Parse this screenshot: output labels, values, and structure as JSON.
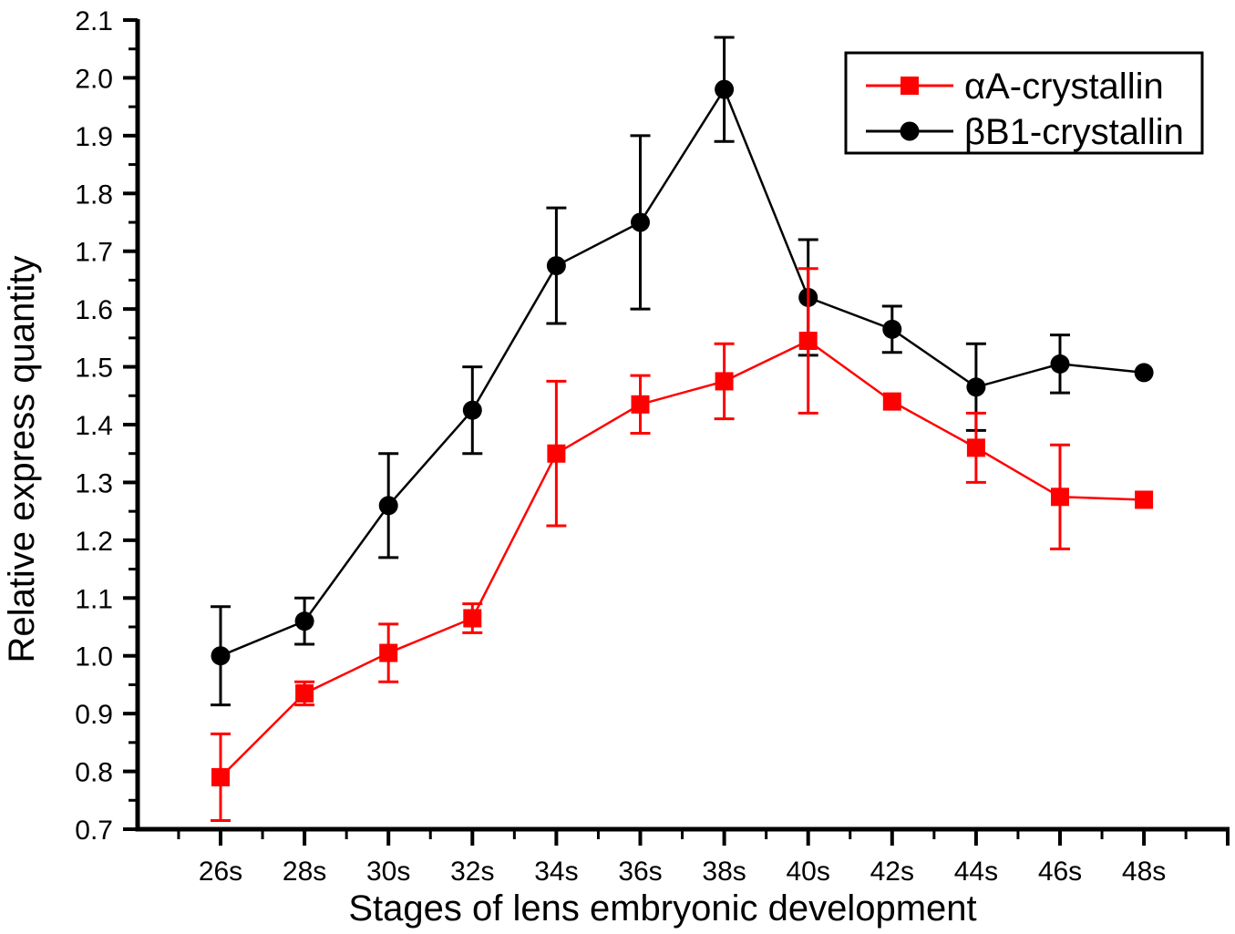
{
  "figure": {
    "background_color": "#ffffff",
    "axis_color": "#000000"
  },
  "chart_data": {
    "type": "line",
    "title": "",
    "xlabel": "Stages of lens embryonic development",
    "ylabel": "Relative express quantity",
    "categories": [
      "26s",
      "28s",
      "30s",
      "32s",
      "34s",
      "36s",
      "38s",
      "40s",
      "42s",
      "44s",
      "46s",
      "48s"
    ],
    "ylim": [
      0.7,
      2.1
    ],
    "ytick_step": 0.1,
    "yminor_step": 0.05,
    "ytick_labels": [
      "0.7",
      "0.8",
      "0.9",
      "1.0",
      "1.1",
      "1.2",
      "1.3",
      "1.4",
      "1.5",
      "1.6",
      "1.7",
      "1.8",
      "1.9",
      "2.0",
      "2.1"
    ],
    "grid": false,
    "error_bars": true,
    "legend": {
      "position": "top-right",
      "border_color": "#000000",
      "entries": [
        "αA-crystallin",
        "βB1-crystallin"
      ]
    },
    "series": [
      {
        "name": "αA-crystallin",
        "color": "#ff0000",
        "marker": "square",
        "values": [
          0.79,
          0.935,
          1.005,
          1.065,
          1.35,
          1.435,
          1.475,
          1.545,
          1.44,
          1.36,
          1.275,
          1.27
        ],
        "errors": [
          0.075,
          0.02,
          0.05,
          0.025,
          0.125,
          0.05,
          0.065,
          0.125,
          0,
          0.06,
          0.09,
          0
        ]
      },
      {
        "name": "βB1-crystallin",
        "color": "#000000",
        "marker": "circle",
        "values": [
          1.0,
          1.06,
          1.26,
          1.425,
          1.675,
          1.75,
          1.98,
          1.62,
          1.565,
          1.465,
          1.505,
          1.49
        ],
        "errors": [
          0.085,
          0.04,
          0.09,
          0.075,
          0.1,
          0.15,
          0.09,
          0.1,
          0.04,
          0.075,
          0.05,
          0
        ]
      }
    ]
  }
}
